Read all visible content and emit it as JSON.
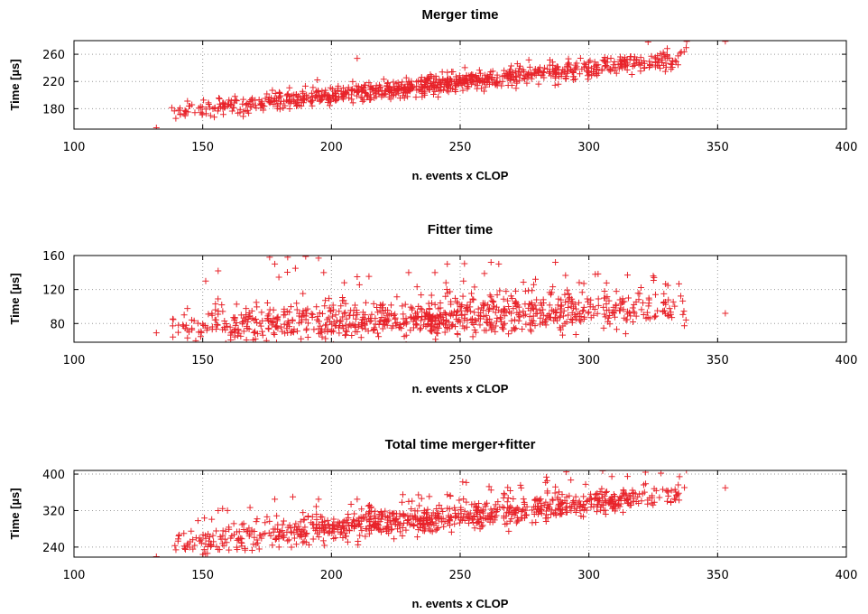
{
  "chart_data": [
    {
      "type": "scatter",
      "title": "Merger time",
      "xlabel": "n. events x CLOP",
      "ylabel": "Time [µs]",
      "xlim": [
        100,
        400
      ],
      "ylim": [
        150,
        280
      ],
      "xticks": [
        "100",
        "150",
        "200",
        "250",
        "300",
        "350",
        "400"
      ],
      "yticks": [
        "180",
        "220",
        "260"
      ],
      "grid": true,
      "marker": "plus",
      "color": "#e8232a",
      "trend": {
        "slope": 0.4,
        "intercept": 120,
        "noise": 7
      },
      "x_range": [
        138,
        338
      ],
      "outliers": [
        [
          132,
          152
        ],
        [
          210,
          254
        ],
        [
          323,
          278
        ],
        [
          338,
          279
        ],
        [
          353,
          279
        ]
      ]
    },
    {
      "type": "scatter",
      "title": "Fitter time",
      "xlabel": "n. events x CLOP",
      "ylabel": "Time [µs]",
      "xlim": [
        100,
        400
      ],
      "ylim": [
        58,
        160
      ],
      "xticks": [
        "100",
        "150",
        "200",
        "250",
        "300",
        "350",
        "400"
      ],
      "yticks": [
        "80",
        "120",
        "160"
      ],
      "grid": true,
      "marker": "plus",
      "color": "#e8232a",
      "trend": {
        "slope": 0.14,
        "intercept": 52,
        "noise": 10
      },
      "x_range": [
        138,
        338
      ],
      "outliers": [
        [
          132,
          69
        ],
        [
          156,
          142
        ],
        [
          176,
          158
        ],
        [
          178,
          150
        ],
        [
          183,
          158
        ],
        [
          186,
          145
        ],
        [
          190,
          159
        ],
        [
          195,
          157
        ],
        [
          197,
          140
        ],
        [
          205,
          128
        ],
        [
          210,
          135
        ],
        [
          230,
          140
        ],
        [
          245,
          150
        ],
        [
          262,
          152
        ],
        [
          265,
          150
        ],
        [
          287,
          152
        ],
        [
          315,
          137
        ],
        [
          325,
          136
        ],
        [
          353,
          92
        ]
      ]
    },
    {
      "type": "scatter",
      "title": "Total time merger+fitter",
      "xlabel": "n. events x CLOP",
      "ylabel": "Time [µs]",
      "xlim": [
        100,
        400
      ],
      "ylim": [
        218,
        408
      ],
      "xticks": [
        "100",
        "150",
        "200",
        "250",
        "300",
        "350",
        "400"
      ],
      "yticks": [
        "240",
        "320",
        "400"
      ],
      "grid": true,
      "marker": "plus",
      "color": "#e8232a",
      "trend": {
        "slope": 0.55,
        "intercept": 168,
        "noise": 13
      },
      "x_range": [
        138,
        338
      ],
      "outliers": [
        [
          132,
          219
        ],
        [
          156,
          320
        ],
        [
          178,
          345
        ],
        [
          185,
          350
        ],
        [
          195,
          345
        ],
        [
          210,
          345
        ],
        [
          230,
          340
        ],
        [
          245,
          355
        ],
        [
          262,
          365
        ],
        [
          287,
          372
        ],
        [
          315,
          395
        ],
        [
          322,
          404
        ],
        [
          328,
          402
        ],
        [
          353,
          370
        ]
      ]
    }
  ]
}
